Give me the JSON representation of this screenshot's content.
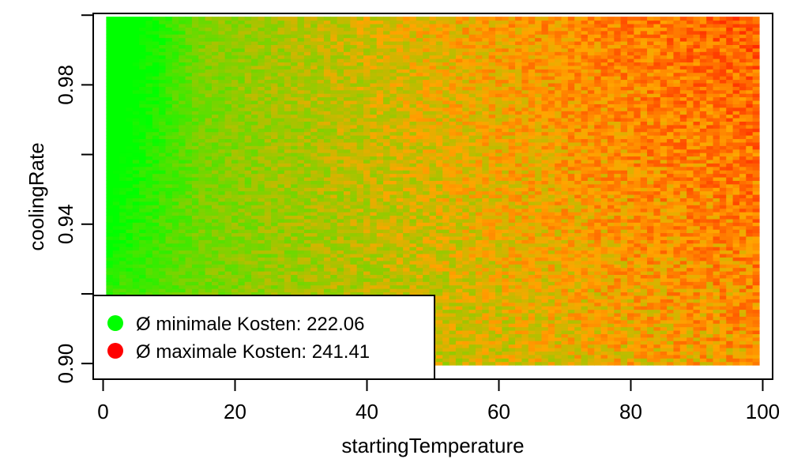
{
  "chart_data": {
    "type": "heatmap",
    "xlabel": "startingTemperature",
    "ylabel": "coolingRate",
    "xlim": [
      -1.5,
      101.5
    ],
    "ylim": [
      0.8955,
      1.0005
    ],
    "x_ticks": [
      {
        "value": 0,
        "label": "0"
      },
      {
        "value": 20,
        "label": "20"
      },
      {
        "value": 40,
        "label": "40"
      },
      {
        "value": 60,
        "label": "60"
      },
      {
        "value": 80,
        "label": "80"
      },
      {
        "value": 100,
        "label": "100"
      }
    ],
    "y_ticks": [
      {
        "value": 0.9,
        "label": "0.90"
      },
      {
        "value": 0.92,
        "label": ""
      },
      {
        "value": 0.94,
        "label": "0.94"
      },
      {
        "value": 0.96,
        "label": ""
      },
      {
        "value": 0.98,
        "label": "0.98"
      },
      {
        "value": 1.0,
        "label": ""
      }
    ],
    "grid": {
      "x_min": 1,
      "x_max": 99,
      "x_step": 1,
      "y_min": 0.9,
      "y_max": 0.999,
      "y_step": 0.001
    },
    "color_scale": {
      "low": "#00ff00",
      "mid": "#ffa500",
      "high": "#ff0000"
    },
    "legend": {
      "position": "bottom-left",
      "entries": [
        {
          "label": "Ø minimale Kosten: 222.06",
          "value": 222.06,
          "color": "#00ff00"
        },
        {
          "label": "Ø maximale Kosten: 241.41",
          "value": 241.41,
          "color": "#ff0000"
        }
      ]
    }
  }
}
